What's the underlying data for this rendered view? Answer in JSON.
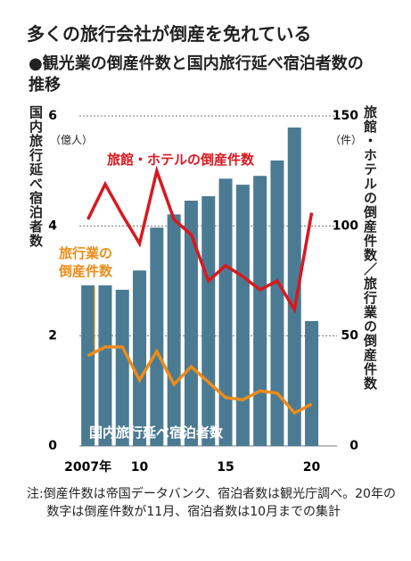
{
  "chart_data": {
    "type": "bar_line",
    "title": "多くの旅行会社が倒産を免れている",
    "subtitle": "●観光業の倒産件数と国内旅行延べ宿泊者数の推移",
    "y_label": "国内旅行延べ宿泊者数",
    "y_unit": "（億人）",
    "y2_label": "旅館・ホテルの倒産件数／旅行業の倒産件数",
    "y2_unit": "（件）",
    "note": "注:倒産件数は帝国データバンク、宿泊者数は観光庁調べ。20年の数字は倒産件数が11月、宿泊者数は10月までの集計",
    "categories": [
      "2007年",
      null,
      null,
      "10",
      null,
      null,
      null,
      null,
      "15",
      null,
      null,
      null,
      null,
      "20"
    ],
    "ylim": [
      0,
      6
    ],
    "yticks": [
      0,
      2,
      4,
      6
    ],
    "y2lim": [
      0,
      150
    ],
    "y2ticks": [
      0,
      50,
      100,
      150
    ],
    "grid": true,
    "series": [
      {
        "name": "国内旅行延べ宿泊者数",
        "type": "bar",
        "color": "#4b7b92",
        "axis": "y",
        "values": [
          2.92,
          2.92,
          2.84,
          3.19,
          3.97,
          4.21,
          4.46,
          4.54,
          4.86,
          4.75,
          4.91,
          5.19,
          5.79,
          2.27
        ]
      },
      {
        "name": "旅館・ホテルの倒産件数",
        "type": "line",
        "color": "#d7191f",
        "axis": "y2",
        "values": [
          103,
          119,
          105,
          92,
          125,
          103,
          96,
          75,
          82,
          77,
          71,
          75,
          62,
          106
        ]
      },
      {
        "name": "旅行業の倒産件数",
        "type": "line",
        "color": "#ec8c1a",
        "axis": "y2",
        "values": [
          41,
          45,
          45,
          30,
          43,
          28,
          36,
          29,
          22,
          21,
          25,
          24,
          15,
          19
        ]
      }
    ]
  }
}
